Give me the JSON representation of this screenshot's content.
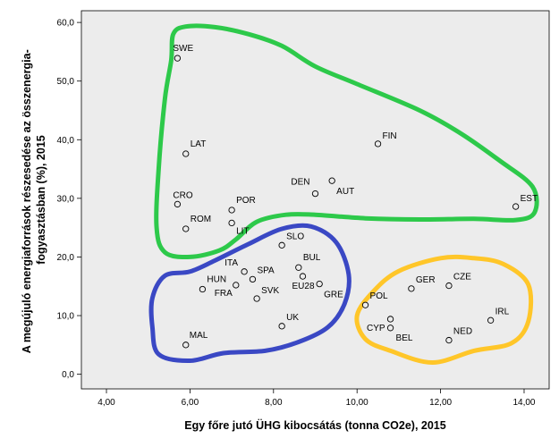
{
  "chart_data": {
    "type": "scatter",
    "xlabel": "Egy főre jutó ÜHG kibocsátás (tonna CO2e), 2015",
    "ylabel_lines": [
      "A megújuló energiaforrások részesedése az összenergia-",
      "fogyasztásban (%), 2015"
    ],
    "xlim": [
      3.4,
      14.6
    ],
    "ylim": [
      -2.5,
      62.0
    ],
    "xticks": [
      "4,00",
      "6,00",
      "8,00",
      "10,00",
      "12,00",
      "14,00"
    ],
    "xtick_values": [
      4,
      6,
      8,
      10,
      12,
      14
    ],
    "yticks": [
      "0,0",
      "10,0",
      "20,0",
      "30,0",
      "40,0",
      "50,0",
      "60,0"
    ],
    "ytick_values": [
      0,
      10,
      20,
      30,
      40,
      50,
      60
    ],
    "grid": false,
    "plot_background": "#ececec",
    "points": [
      {
        "label": "SWE",
        "x": 5.7,
        "y": 53.9
      },
      {
        "label": "FIN",
        "x": 10.5,
        "y": 39.3
      },
      {
        "label": "LAT",
        "x": 5.9,
        "y": 37.6
      },
      {
        "label": "AUT",
        "x": 9.4,
        "y": 33.0
      },
      {
        "label": "DEN",
        "x": 9.0,
        "y": 30.8
      },
      {
        "label": "CRO",
        "x": 5.7,
        "y": 29.0
      },
      {
        "label": "EST",
        "x": 13.8,
        "y": 28.6
      },
      {
        "label": "POR",
        "x": 7.0,
        "y": 28.0
      },
      {
        "label": "ROM",
        "x": 5.9,
        "y": 24.8
      },
      {
        "label": "LIT",
        "x": 7.0,
        "y": 25.8
      },
      {
        "label": "SLO",
        "x": 8.2,
        "y": 22.0
      },
      {
        "label": "BUL",
        "x": 8.6,
        "y": 18.2
      },
      {
        "label": "ITA",
        "x": 7.3,
        "y": 17.5
      },
      {
        "label": "SPA",
        "x": 7.5,
        "y": 16.2
      },
      {
        "label": "EU28",
        "x": 8.7,
        "y": 16.7
      },
      {
        "label": "HUN",
        "x": 6.3,
        "y": 14.5
      },
      {
        "label": "FRA",
        "x": 7.1,
        "y": 15.2
      },
      {
        "label": "SVK",
        "x": 7.6,
        "y": 12.9
      },
      {
        "label": "GRE",
        "x": 9.1,
        "y": 15.4
      },
      {
        "label": "UK",
        "x": 8.2,
        "y": 8.2
      },
      {
        "label": "MAL",
        "x": 5.9,
        "y": 5.0
      },
      {
        "label": "GER",
        "x": 11.3,
        "y": 14.6
      },
      {
        "label": "CZE",
        "x": 12.2,
        "y": 15.1
      },
      {
        "label": "POL",
        "x": 10.2,
        "y": 11.8
      },
      {
        "label": "CYP",
        "x": 10.8,
        "y": 9.4
      },
      {
        "label": "BEL",
        "x": 10.8,
        "y": 7.9
      },
      {
        "label": "NED",
        "x": 12.2,
        "y": 5.8
      },
      {
        "label": "IRL",
        "x": 13.2,
        "y": 9.2
      }
    ],
    "clusters": [
      {
        "color": "#2dc94a",
        "outline": [
          [
            5.55,
            53.5
          ],
          [
            5.6,
            58
          ],
          [
            5.9,
            59.3
          ],
          [
            6.6,
            59.2
          ],
          [
            7.4,
            58
          ],
          [
            8.2,
            56
          ],
          [
            9.0,
            52.5
          ],
          [
            10.0,
            49.5
          ],
          [
            11.5,
            45
          ],
          [
            12.5,
            41
          ],
          [
            13.4,
            36.5
          ],
          [
            14.2,
            32
          ],
          [
            14.25,
            27.6
          ],
          [
            13.8,
            26.3
          ],
          [
            12.8,
            26.5
          ],
          [
            11.5,
            26.4
          ],
          [
            10.2,
            26.6
          ],
          [
            9.0,
            27.2
          ],
          [
            8.3,
            27.2
          ],
          [
            7.6,
            26
          ],
          [
            7.1,
            23
          ],
          [
            6.7,
            21.1
          ],
          [
            6.0,
            20.0
          ],
          [
            5.4,
            20.8
          ],
          [
            5.2,
            25
          ],
          [
            5.25,
            35
          ],
          [
            5.4,
            47
          ]
        ]
      },
      {
        "color": "#3a48c4",
        "outline": [
          [
            7.4,
            22.2
          ],
          [
            8.2,
            24.8
          ],
          [
            8.9,
            25.2
          ],
          [
            9.5,
            22.5
          ],
          [
            9.8,
            17
          ],
          [
            9.7,
            12
          ],
          [
            9.3,
            8
          ],
          [
            8.6,
            5.5
          ],
          [
            7.8,
            4.0
          ],
          [
            6.8,
            3.6
          ],
          [
            6.0,
            2.3
          ],
          [
            5.25,
            3.4
          ],
          [
            5.1,
            8
          ],
          [
            5.1,
            13
          ],
          [
            5.4,
            16.8
          ],
          [
            6.0,
            17.5
          ],
          [
            6.6,
            19.4
          ]
        ]
      },
      {
        "color": "#ffc629",
        "outline": [
          [
            10.0,
            10
          ],
          [
            10.4,
            14.2
          ],
          [
            11.0,
            17.6
          ],
          [
            12.0,
            19.8
          ],
          [
            12.8,
            19.8
          ],
          [
            13.5,
            18.8
          ],
          [
            14.1,
            15.3
          ],
          [
            14.1,
            9
          ],
          [
            13.7,
            5.3
          ],
          [
            12.8,
            4.0
          ],
          [
            11.8,
            2.0
          ],
          [
            10.8,
            4.0
          ],
          [
            10.2,
            6
          ]
        ]
      }
    ]
  }
}
